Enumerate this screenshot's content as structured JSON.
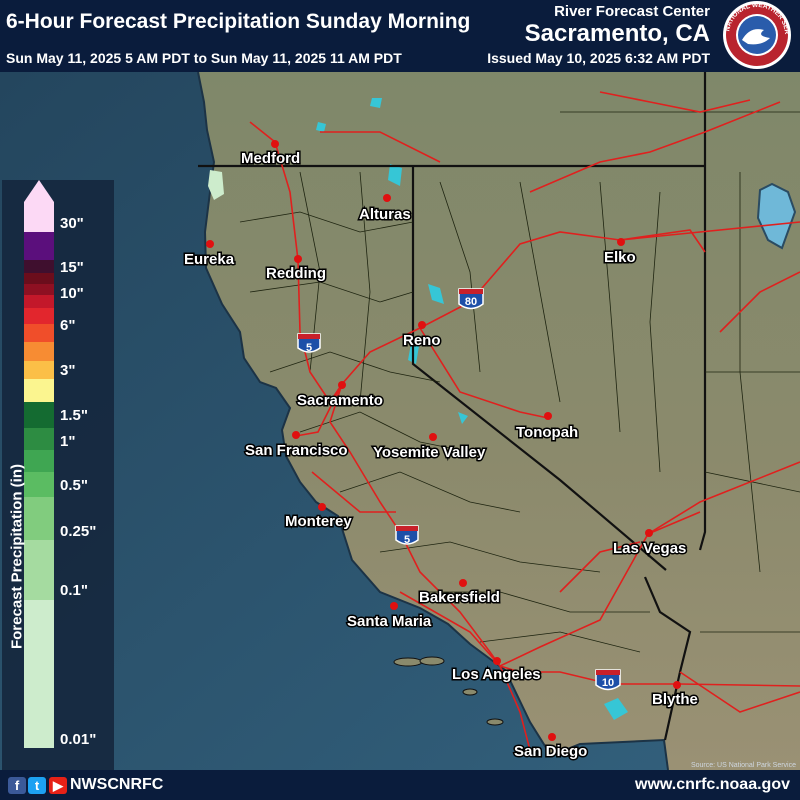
{
  "header": {
    "title": "6-Hour Forecast Precipitation Sunday Morning",
    "valid_range": "Sun May 11, 2025 5 AM PDT to Sun May 11, 2025 11 AM PDT",
    "office_label": "River Forecast Center",
    "office_name": "Sacramento, CA",
    "issued": "Issued May 10, 2025 6:32 AM PDT",
    "logo_text": "NATIONAL WEATHER SERVICE"
  },
  "legend": {
    "title": "Forecast Precipitation (in)",
    "colors": [
      "#fcd9f5",
      "#5b0f7c",
      "#3f0f2e",
      "#6b0d1c",
      "#8e1022",
      "#c3182a",
      "#e2262d",
      "#f04e2a",
      "#f78c33",
      "#fbbf47",
      "#fbf58f",
      "#146b31",
      "#2d8c42",
      "#3fa652",
      "#5bbc62",
      "#81cc7e",
      "#a5dba0",
      "#cdeccc"
    ],
    "ticks": [
      "30\"",
      "15\"",
      "10\"",
      "6\"",
      "3\"",
      "1.5\"",
      "1\"",
      "0.5\"",
      "0.25\"",
      "0.1\"",
      "0.01\""
    ]
  },
  "map": {
    "cities": [
      {
        "name": "Medford"
      },
      {
        "name": "Alturas"
      },
      {
        "name": "Eureka"
      },
      {
        "name": "Redding"
      },
      {
        "name": "Elko"
      },
      {
        "name": "Reno"
      },
      {
        "name": "Sacramento"
      },
      {
        "name": "San Francisco"
      },
      {
        "name": "Yosemite Valley"
      },
      {
        "name": "Tonopah"
      },
      {
        "name": "Monterey"
      },
      {
        "name": "Las Vegas"
      },
      {
        "name": "Bakersfield"
      },
      {
        "name": "Santa Maria"
      },
      {
        "name": "Los Angeles"
      },
      {
        "name": "Blythe"
      },
      {
        "name": "San Diego"
      }
    ],
    "interstates": [
      "5",
      "80",
      "5",
      "10"
    ],
    "source": "Source: US National Park Service"
  },
  "footer": {
    "social_handle": "NWSCNRFC",
    "website": "www.cnrfc.noaa.gov"
  },
  "colors": {
    "ocean": "#2e5570",
    "land": "#8a8f6a",
    "highway": "#e0201e",
    "city_dot": "#e01010",
    "header_bg": "#0a1c3c"
  }
}
